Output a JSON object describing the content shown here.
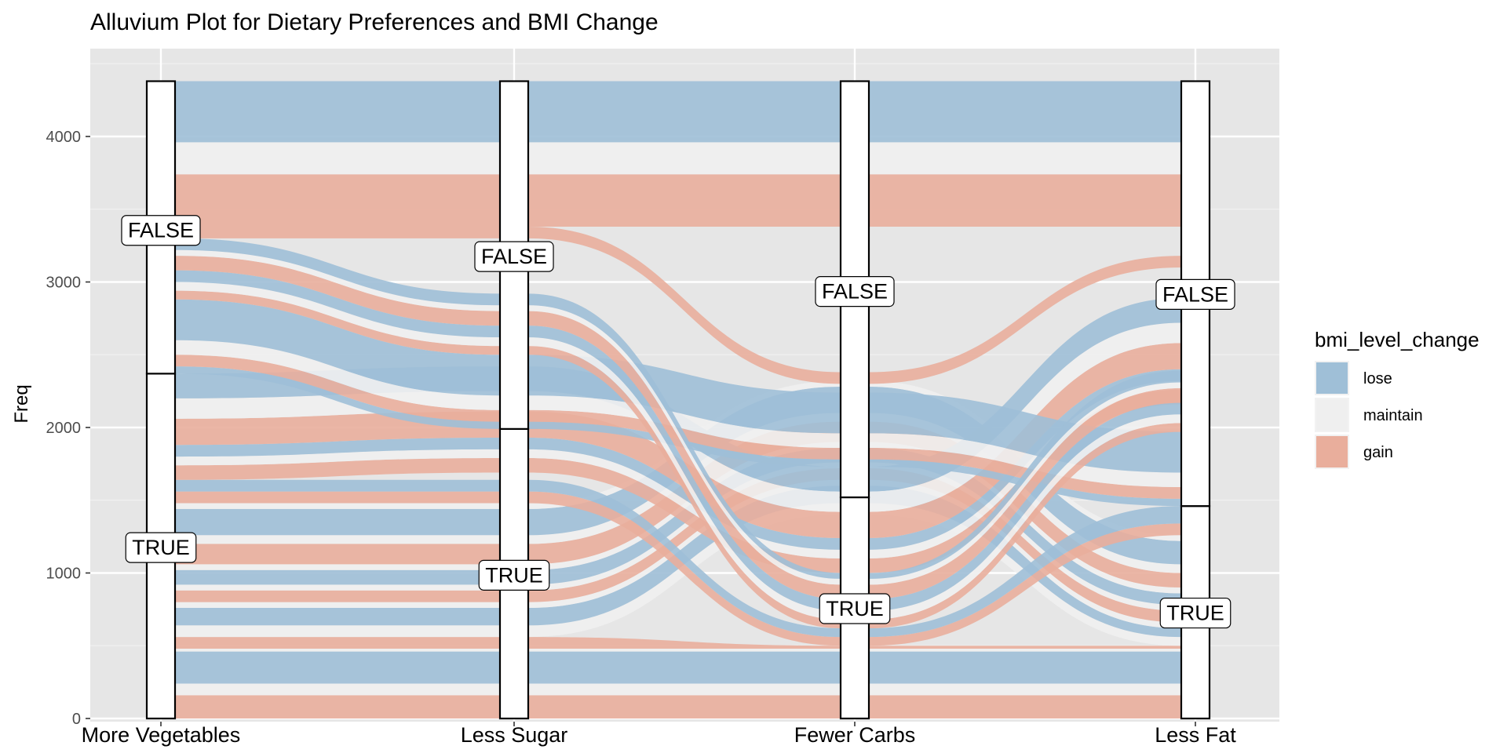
{
  "chart_data": {
    "type": "alluvial",
    "title": "Alluvium Plot for Dietary Preferences and BMI Change",
    "xlabel": "",
    "ylabel": "Freq",
    "ylim": [
      0,
      4400
    ],
    "yticks": [
      0,
      1000,
      2000,
      3000,
      4000
    ],
    "grid": true,
    "categories": [
      "More Vegetables",
      "Less Sugar",
      "Fewer Carbs",
      "Less Fat"
    ],
    "legend": {
      "title": "bmi_level_change",
      "placement": "right",
      "items": [
        {
          "label": "lose",
          "color": "#9fbfd7"
        },
        {
          "label": "maintain",
          "color": "#efefef"
        },
        {
          "label": "gain",
          "color": "#e9ae9c"
        }
      ]
    },
    "strata": [
      {
        "axis": "More Vegetables",
        "label": "TRUE",
        "total": 2370,
        "label_y": 1180
      },
      {
        "axis": "More Vegetables",
        "label": "FALSE",
        "total": 2010,
        "label_y": 3360
      },
      {
        "axis": "Less Sugar",
        "label": "TRUE",
        "total": 1990,
        "label_y": 990
      },
      {
        "axis": "Less Sugar",
        "label": "FALSE",
        "total": 2390,
        "label_y": 3180
      },
      {
        "axis": "Fewer Carbs",
        "label": "TRUE",
        "total": 1520,
        "label_y": 760
      },
      {
        "axis": "Fewer Carbs",
        "label": "FALSE",
        "total": 2860,
        "label_y": 2940
      },
      {
        "axis": "Less Fat",
        "label": "TRUE",
        "total": 1460,
        "label_y": 730
      },
      {
        "axis": "Less Fat",
        "label": "FALSE",
        "total": 2920,
        "label_y": 2920
      }
    ],
    "flows": [
      {
        "group": "gain",
        "ranges": [
          [
            0,
            160
          ],
          [
            0,
            160
          ],
          [
            0,
            160
          ],
          [
            0,
            160
          ]
        ]
      },
      {
        "group": "maintain",
        "ranges": [
          [
            160,
            240
          ],
          [
            160,
            240
          ],
          [
            160,
            240
          ],
          [
            160,
            240
          ]
        ]
      },
      {
        "group": "lose",
        "ranges": [
          [
            240,
            460
          ],
          [
            240,
            460
          ],
          [
            240,
            460
          ],
          [
            240,
            460
          ]
        ]
      },
      {
        "group": "maintain",
        "ranges": [
          [
            460,
            480
          ],
          [
            460,
            480
          ],
          [
            460,
            480
          ],
          [
            460,
            480
          ]
        ]
      },
      {
        "group": "gain",
        "ranges": [
          [
            480,
            560
          ],
          [
            480,
            560
          ],
          [
            480,
            500
          ],
          [
            480,
            500
          ]
        ]
      },
      {
        "group": "maintain",
        "ranges": [
          [
            560,
            640
          ],
          [
            560,
            640
          ],
          [
            1400,
            1480
          ],
          [
            500,
            560
          ]
        ]
      },
      {
        "group": "lose",
        "ranges": [
          [
            640,
            760
          ],
          [
            640,
            760
          ],
          [
            1480,
            1600
          ],
          [
            560,
            620
          ]
        ]
      },
      {
        "group": "maintain",
        "ranges": [
          [
            760,
            800
          ],
          [
            760,
            800
          ],
          [
            1600,
            1640
          ],
          [
            620,
            660
          ]
        ]
      },
      {
        "group": "gain",
        "ranges": [
          [
            800,
            880
          ],
          [
            800,
            880
          ],
          [
            1640,
            1720
          ],
          [
            660,
            740
          ]
        ]
      },
      {
        "group": "maintain",
        "ranges": [
          [
            880,
            920
          ],
          [
            880,
            920
          ],
          [
            1720,
            1760
          ],
          [
            740,
            780
          ]
        ]
      },
      {
        "group": "lose",
        "ranges": [
          [
            920,
            1020
          ],
          [
            920,
            1020
          ],
          [
            1760,
            1860
          ],
          [
            780,
            860
          ]
        ]
      },
      {
        "group": "maintain",
        "ranges": [
          [
            1020,
            1060
          ],
          [
            1020,
            1060
          ],
          [
            1860,
            1900
          ],
          [
            860,
            900
          ]
        ]
      },
      {
        "group": "gain",
        "ranges": [
          [
            1060,
            1200
          ],
          [
            1060,
            1200
          ],
          [
            1900,
            2040
          ],
          [
            900,
            1000
          ]
        ]
      },
      {
        "group": "maintain",
        "ranges": [
          [
            1200,
            1260
          ],
          [
            1200,
            1260
          ],
          [
            2040,
            2100
          ],
          [
            1000,
            1060
          ]
        ]
      },
      {
        "group": "lose",
        "ranges": [
          [
            1260,
            1440
          ],
          [
            1260,
            1440
          ],
          [
            2100,
            2280
          ],
          [
            1060,
            1220
          ]
        ]
      },
      {
        "group": "maintain",
        "ranges": [
          [
            1440,
            1480
          ],
          [
            1440,
            1480
          ],
          [
            2280,
            2320
          ],
          [
            1220,
            1260
          ]
        ]
      },
      {
        "group": "gain",
        "ranges": [
          [
            1480,
            1560
          ],
          [
            1480,
            1560
          ],
          [
            500,
            560
          ],
          [
            1260,
            1340
          ]
        ]
      },
      {
        "group": "lose",
        "ranges": [
          [
            1560,
            1640
          ],
          [
            1560,
            1640
          ],
          [
            560,
            620
          ],
          [
            1340,
            1460
          ]
        ]
      },
      {
        "group": "gain",
        "ranges": [
          [
            1640,
            1740
          ],
          [
            1690,
            1790
          ],
          [
            1000,
            1100
          ],
          [
            2160,
            2260
          ]
        ]
      },
      {
        "group": "maintain",
        "ranges": [
          [
            1740,
            1800
          ],
          [
            1790,
            1850
          ],
          [
            1100,
            1160
          ],
          [
            2260,
            2320
          ]
        ]
      },
      {
        "group": "lose",
        "ranges": [
          [
            1800,
            1880
          ],
          [
            1850,
            1930
          ],
          [
            1160,
            1240
          ],
          [
            2320,
            2400
          ]
        ]
      },
      {
        "group": "gain",
        "ranges": [
          [
            1880,
            2060
          ],
          [
            1930,
            2110
          ],
          [
            1240,
            1420
          ],
          [
            2400,
            2580
          ]
        ]
      },
      {
        "group": "maintain",
        "ranges": [
          [
            2060,
            2200
          ],
          [
            2110,
            2250
          ],
          [
            1420,
            1560
          ],
          [
            2580,
            2720
          ]
        ]
      },
      {
        "group": "lose",
        "ranges": [
          [
            2200,
            2370
          ],
          [
            2250,
            2420
          ],
          [
            1560,
            1730
          ],
          [
            2720,
            2890
          ]
        ]
      },
      {
        "group": "lose",
        "ranges": [
          [
            2370,
            2420
          ],
          [
            1990,
            2040
          ],
          [
            1730,
            1780
          ],
          [
            1460,
            1510
          ]
        ]
      },
      {
        "group": "gain",
        "ranges": [
          [
            2420,
            2500
          ],
          [
            2040,
            2120
          ],
          [
            1780,
            1860
          ],
          [
            1510,
            1590
          ]
        ]
      },
      {
        "group": "maintain",
        "ranges": [
          [
            2500,
            2600
          ],
          [
            2120,
            2220
          ],
          [
            1860,
            1960
          ],
          [
            1590,
            1690
          ]
        ]
      },
      {
        "group": "lose",
        "ranges": [
          [
            2600,
            2880
          ],
          [
            2220,
            2500
          ],
          [
            1960,
            2240
          ],
          [
            1690,
            1970
          ]
        ]
      },
      {
        "group": "gain",
        "ranges": [
          [
            2880,
            2940
          ],
          [
            2500,
            2560
          ],
          [
            620,
            680
          ],
          [
            1970,
            2030
          ]
        ]
      },
      {
        "group": "maintain",
        "ranges": [
          [
            2940,
            3000
          ],
          [
            2560,
            2620
          ],
          [
            680,
            740
          ],
          [
            2030,
            2090
          ]
        ]
      },
      {
        "group": "lose",
        "ranges": [
          [
            3000,
            3080
          ],
          [
            2620,
            2700
          ],
          [
            740,
            820
          ],
          [
            2090,
            2170
          ]
        ]
      },
      {
        "group": "gain",
        "ranges": [
          [
            3080,
            3180
          ],
          [
            2700,
            2800
          ],
          [
            820,
            920
          ],
          [
            2170,
            2270
          ]
        ]
      },
      {
        "group": "maintain",
        "ranges": [
          [
            3180,
            3220
          ],
          [
            2800,
            2840
          ],
          [
            920,
            960
          ],
          [
            2270,
            2310
          ]
        ]
      },
      {
        "group": "lose",
        "ranges": [
          [
            3220,
            3300
          ],
          [
            2840,
            2920
          ],
          [
            960,
            1000
          ],
          [
            2310,
            2390
          ]
        ]
      },
      {
        "group": "gain",
        "ranges": [
          [
            3300,
            3380
          ],
          [
            3300,
            3380
          ],
          [
            2300,
            2380
          ],
          [
            3100,
            3180
          ]
        ]
      },
      {
        "group": "gain",
        "ranges": [
          [
            3380,
            3740
          ],
          [
            3380,
            3740
          ],
          [
            3380,
            3740
          ],
          [
            3380,
            3740
          ]
        ]
      },
      {
        "group": "maintain",
        "ranges": [
          [
            3740,
            3960
          ],
          [
            3740,
            3960
          ],
          [
            3740,
            3960
          ],
          [
            3740,
            3960
          ]
        ]
      },
      {
        "group": "lose",
        "ranges": [
          [
            3960,
            4380
          ],
          [
            3960,
            4380
          ],
          [
            3960,
            4380
          ],
          [
            3960,
            4380
          ]
        ]
      }
    ]
  }
}
